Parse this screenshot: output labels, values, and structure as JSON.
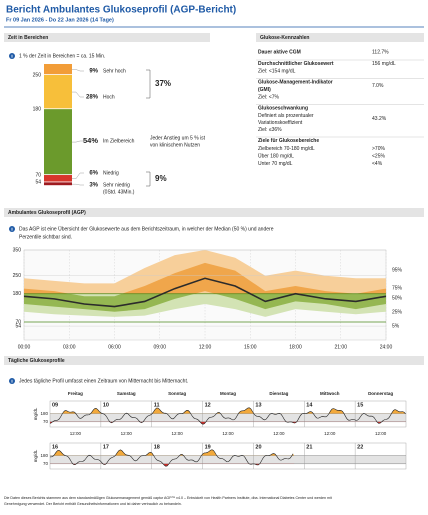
{
  "header": {
    "title": "Bericht Ambulantes Glukoseprofil (AGP-Bericht)",
    "subtitle": "Fr 09 Jan 2026 - Do 22 Jan 2026 (14 Tage)"
  },
  "time_in_range": {
    "title": "Zeit in Bereichen",
    "note": "1 % der Zeit in Bereichen = ca. 15 Min.",
    "segments": [
      {
        "name": "Sehr hoch",
        "value": 9,
        "label": "9%",
        "color": "#f29d38"
      },
      {
        "name": "Hoch",
        "value": 28,
        "label": "28%",
        "color": "#f7bf3a"
      },
      {
        "name": "Im Zielbereich",
        "value": 54,
        "label": "54%",
        "color": "#6b9a2c"
      },
      {
        "name": "Niedrig",
        "value": 6,
        "label": "6%",
        "color": "#d7362c"
      },
      {
        "name": "Sehr niedrig",
        "detail": "(0Std. 43Min.)",
        "value": 3,
        "label": "3%",
        "color": "#9e1a1f"
      }
    ],
    "thresholds": [
      250,
      180,
      70,
      54
    ],
    "high_total": {
      "value": 37,
      "label": "37%"
    },
    "low_total": {
      "value": 9,
      "label": "9%"
    },
    "target_note": [
      "Jeder Anstieg um 5 % ist",
      "von klinischem Nutzen"
    ]
  },
  "metrics": {
    "title": "Glukose-Kennzahlen",
    "rows": [
      {
        "title": [
          "Dauer aktive CGM"
        ],
        "value": "112.7%"
      },
      {
        "title": [
          "Durchschnittlicher Glukosewert"
        ],
        "sub": [
          "Ziel: <154 mg/dL"
        ],
        "value": "156 mg/dL"
      },
      {
        "title": [
          "Glukose-Management-Indikator",
          "(GMI)"
        ],
        "sub": [
          "Ziel: <7%"
        ],
        "value": "7.0%"
      },
      {
        "title": [
          "Glukoseschwankung"
        ],
        "sub": [
          "Definiert als prozentualer",
          "Variationskoeffizient",
          "Ziel: ≤36%"
        ],
        "value": "43.2%"
      }
    ],
    "targets": {
      "title": "Ziele für Glukosebereiche",
      "rows": [
        [
          "Zielbereich 70-180 mg/dL",
          ">70%"
        ],
        [
          "Über 180 mg/dL",
          "<25%"
        ],
        [
          "Unter 70 mg/dL",
          "<4%"
        ]
      ]
    }
  },
  "agp": {
    "title": "Ambulantes Glukoseprofil (AGP)",
    "note": [
      "Das AGP ist eine Übersicht der Glukosewerte aus dem Berichtszeitraum, in welcher der Median (50 %) und andere",
      "Perzentile sichtbar sind."
    ],
    "ylim": [
      0,
      350
    ],
    "yticks": [
      54,
      70,
      180,
      250,
      350
    ],
    "target_range": [
      70,
      180
    ],
    "xlim": [
      0,
      24
    ],
    "xticks": [
      {
        "value": 0,
        "label": "00:00"
      },
      {
        "value": 3,
        "label": "03:00"
      },
      {
        "value": 6,
        "label": "06:00"
      },
      {
        "value": 9,
        "label": "09:00"
      },
      {
        "value": 12,
        "label": "12:00"
      },
      {
        "value": 15,
        "label": "15:00"
      },
      {
        "value": 18,
        "label": "18:00"
      },
      {
        "value": 21,
        "label": "21:00"
      },
      {
        "value": 24,
        "label": "24:00"
      }
    ],
    "x": [
      0,
      2,
      4,
      6,
      8,
      10,
      12,
      14,
      16,
      18,
      20,
      22,
      24
    ],
    "percentiles": [
      {
        "name": "95%",
        "values": [
          240,
          230,
          220,
          220,
          280,
          330,
          350,
          320,
          250,
          270,
          250,
          240,
          240
        ]
      },
      {
        "name": "75%",
        "values": [
          200,
          190,
          170,
          170,
          210,
          260,
          300,
          270,
          190,
          210,
          190,
          180,
          200
        ]
      },
      {
        "name": "50%",
        "values": [
          170,
          160,
          140,
          130,
          150,
          200,
          240,
          210,
          150,
          180,
          160,
          150,
          170
        ]
      },
      {
        "name": "25%",
        "values": [
          140,
          130,
          120,
          110,
          120,
          160,
          190,
          160,
          120,
          150,
          140,
          120,
          140
        ]
      },
      {
        "name": "5%",
        "values": [
          110,
          100,
          95,
          90,
          95,
          120,
          140,
          120,
          90,
          120,
          110,
          100,
          110
        ]
      }
    ]
  },
  "daily": {
    "title": "Tägliche Glukoseprofile",
    "note": "Jedes tägliche Profil umfasst einen Zeitraum von Mitternacht bis Mitternacht.",
    "y_label": "mg/dL",
    "yticks": [
      180,
      70
    ],
    "time_label": "12:00",
    "rows": [
      {
        "days": [
          "Freitag",
          "Samstag",
          "Sonntag",
          "Montag",
          "Dienstag",
          "Mittwoch",
          "Donnerstag"
        ],
        "dates": [
          "09",
          "10",
          "11",
          "12",
          "13",
          "14",
          "15"
        ]
      },
      {
        "dates": [
          "16",
          "17",
          "18",
          "19",
          "20",
          "21",
          "22"
        ]
      }
    ]
  },
  "footer": [
    "Die Daten dieses Berichts stammen aus dem standardmäßigen Glukosemanagement gemäß captur AGP™ v4.0 – Entwickelt von Health Partners Institute, dba. International Diabetes Center und werden mit",
    "Genehmigung verwendet. Der Bericht enthält Gesundheitsinformationen und ist daher vertraulich zu behandeln."
  ]
}
